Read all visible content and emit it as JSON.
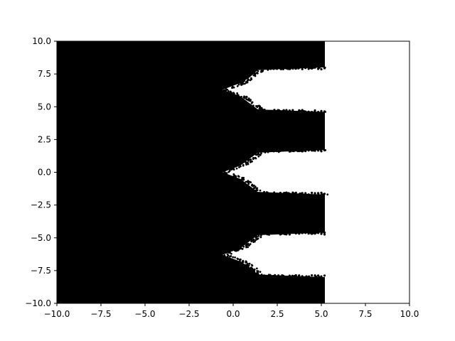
{
  "chart_data": {
    "type": "scatter",
    "title": "",
    "xlabel": "",
    "ylabel": "",
    "xlim": [
      -10.0,
      10.0
    ],
    "ylim": [
      -10.0,
      10.0
    ],
    "grid": false,
    "xticks": [
      "−10.0",
      "−7.5",
      "−5.0",
      "−2.5",
      "0.0",
      "2.5",
      "5.0",
      "7.5",
      "10.0"
    ],
    "yticks": [
      "−10.0",
      "−7.5",
      "−5.0",
      "−2.5",
      "0.0",
      "2.5",
      "5.0",
      "7.5",
      "10.0"
    ],
    "xtick_values": [
      -10.0,
      -7.5,
      -5.0,
      -2.5,
      0.0,
      2.5,
      5.0,
      7.5,
      10.0
    ],
    "ytick_values": [
      -10.0,
      -7.5,
      -5.0,
      -2.5,
      0.0,
      2.5,
      5.0,
      7.5,
      10.0
    ],
    "point_color": "#000000",
    "filled_region": {
      "x_max": 5.2,
      "description_series": [
        {
          "name": "",
          "values": [
            {
              "y": 10.0,
              "x_edge": 5.2
            },
            {
              "y": 8.0,
              "x_edge": 5.2
            },
            {
              "y": 7.8,
              "x_edge": 1.4
            },
            {
              "y": 7.2,
              "x_edge": 0.9
            },
            {
              "y": 6.8,
              "x_edge": 0.4
            },
            {
              "y": 6.3,
              "x_edge": -0.6
            },
            {
              "y": 5.8,
              "x_edge": 0.4
            },
            {
              "y": 5.3,
              "x_edge": 0.9
            },
            {
              "y": 4.8,
              "x_edge": 1.4
            },
            {
              "y": 4.6,
              "x_edge": 5.2
            },
            {
              "y": 1.7,
              "x_edge": 5.2
            },
            {
              "y": 1.5,
              "x_edge": 1.4
            },
            {
              "y": 1.0,
              "x_edge": 0.9
            },
            {
              "y": 0.5,
              "x_edge": 0.4
            },
            {
              "y": 0.0,
              "x_edge": -0.6
            },
            {
              "y": -0.5,
              "x_edge": 0.4
            },
            {
              "y": -1.0,
              "x_edge": 0.9
            },
            {
              "y": -1.5,
              "x_edge": 1.4
            },
            {
              "y": -1.7,
              "x_edge": 5.2
            },
            {
              "y": -4.6,
              "x_edge": 5.2
            },
            {
              "y": -4.8,
              "x_edge": 1.4
            },
            {
              "y": -5.3,
              "x_edge": 0.9
            },
            {
              "y": -5.8,
              "x_edge": 0.4
            },
            {
              "y": -6.3,
              "x_edge": -0.6
            },
            {
              "y": -6.8,
              "x_edge": 0.4
            },
            {
              "y": -7.2,
              "x_edge": 0.9
            },
            {
              "y": -7.8,
              "x_edge": 1.4
            },
            {
              "y": -8.0,
              "x_edge": 5.2
            },
            {
              "y": -10.0,
              "x_edge": 5.2
            }
          ]
        }
      ]
    }
  }
}
